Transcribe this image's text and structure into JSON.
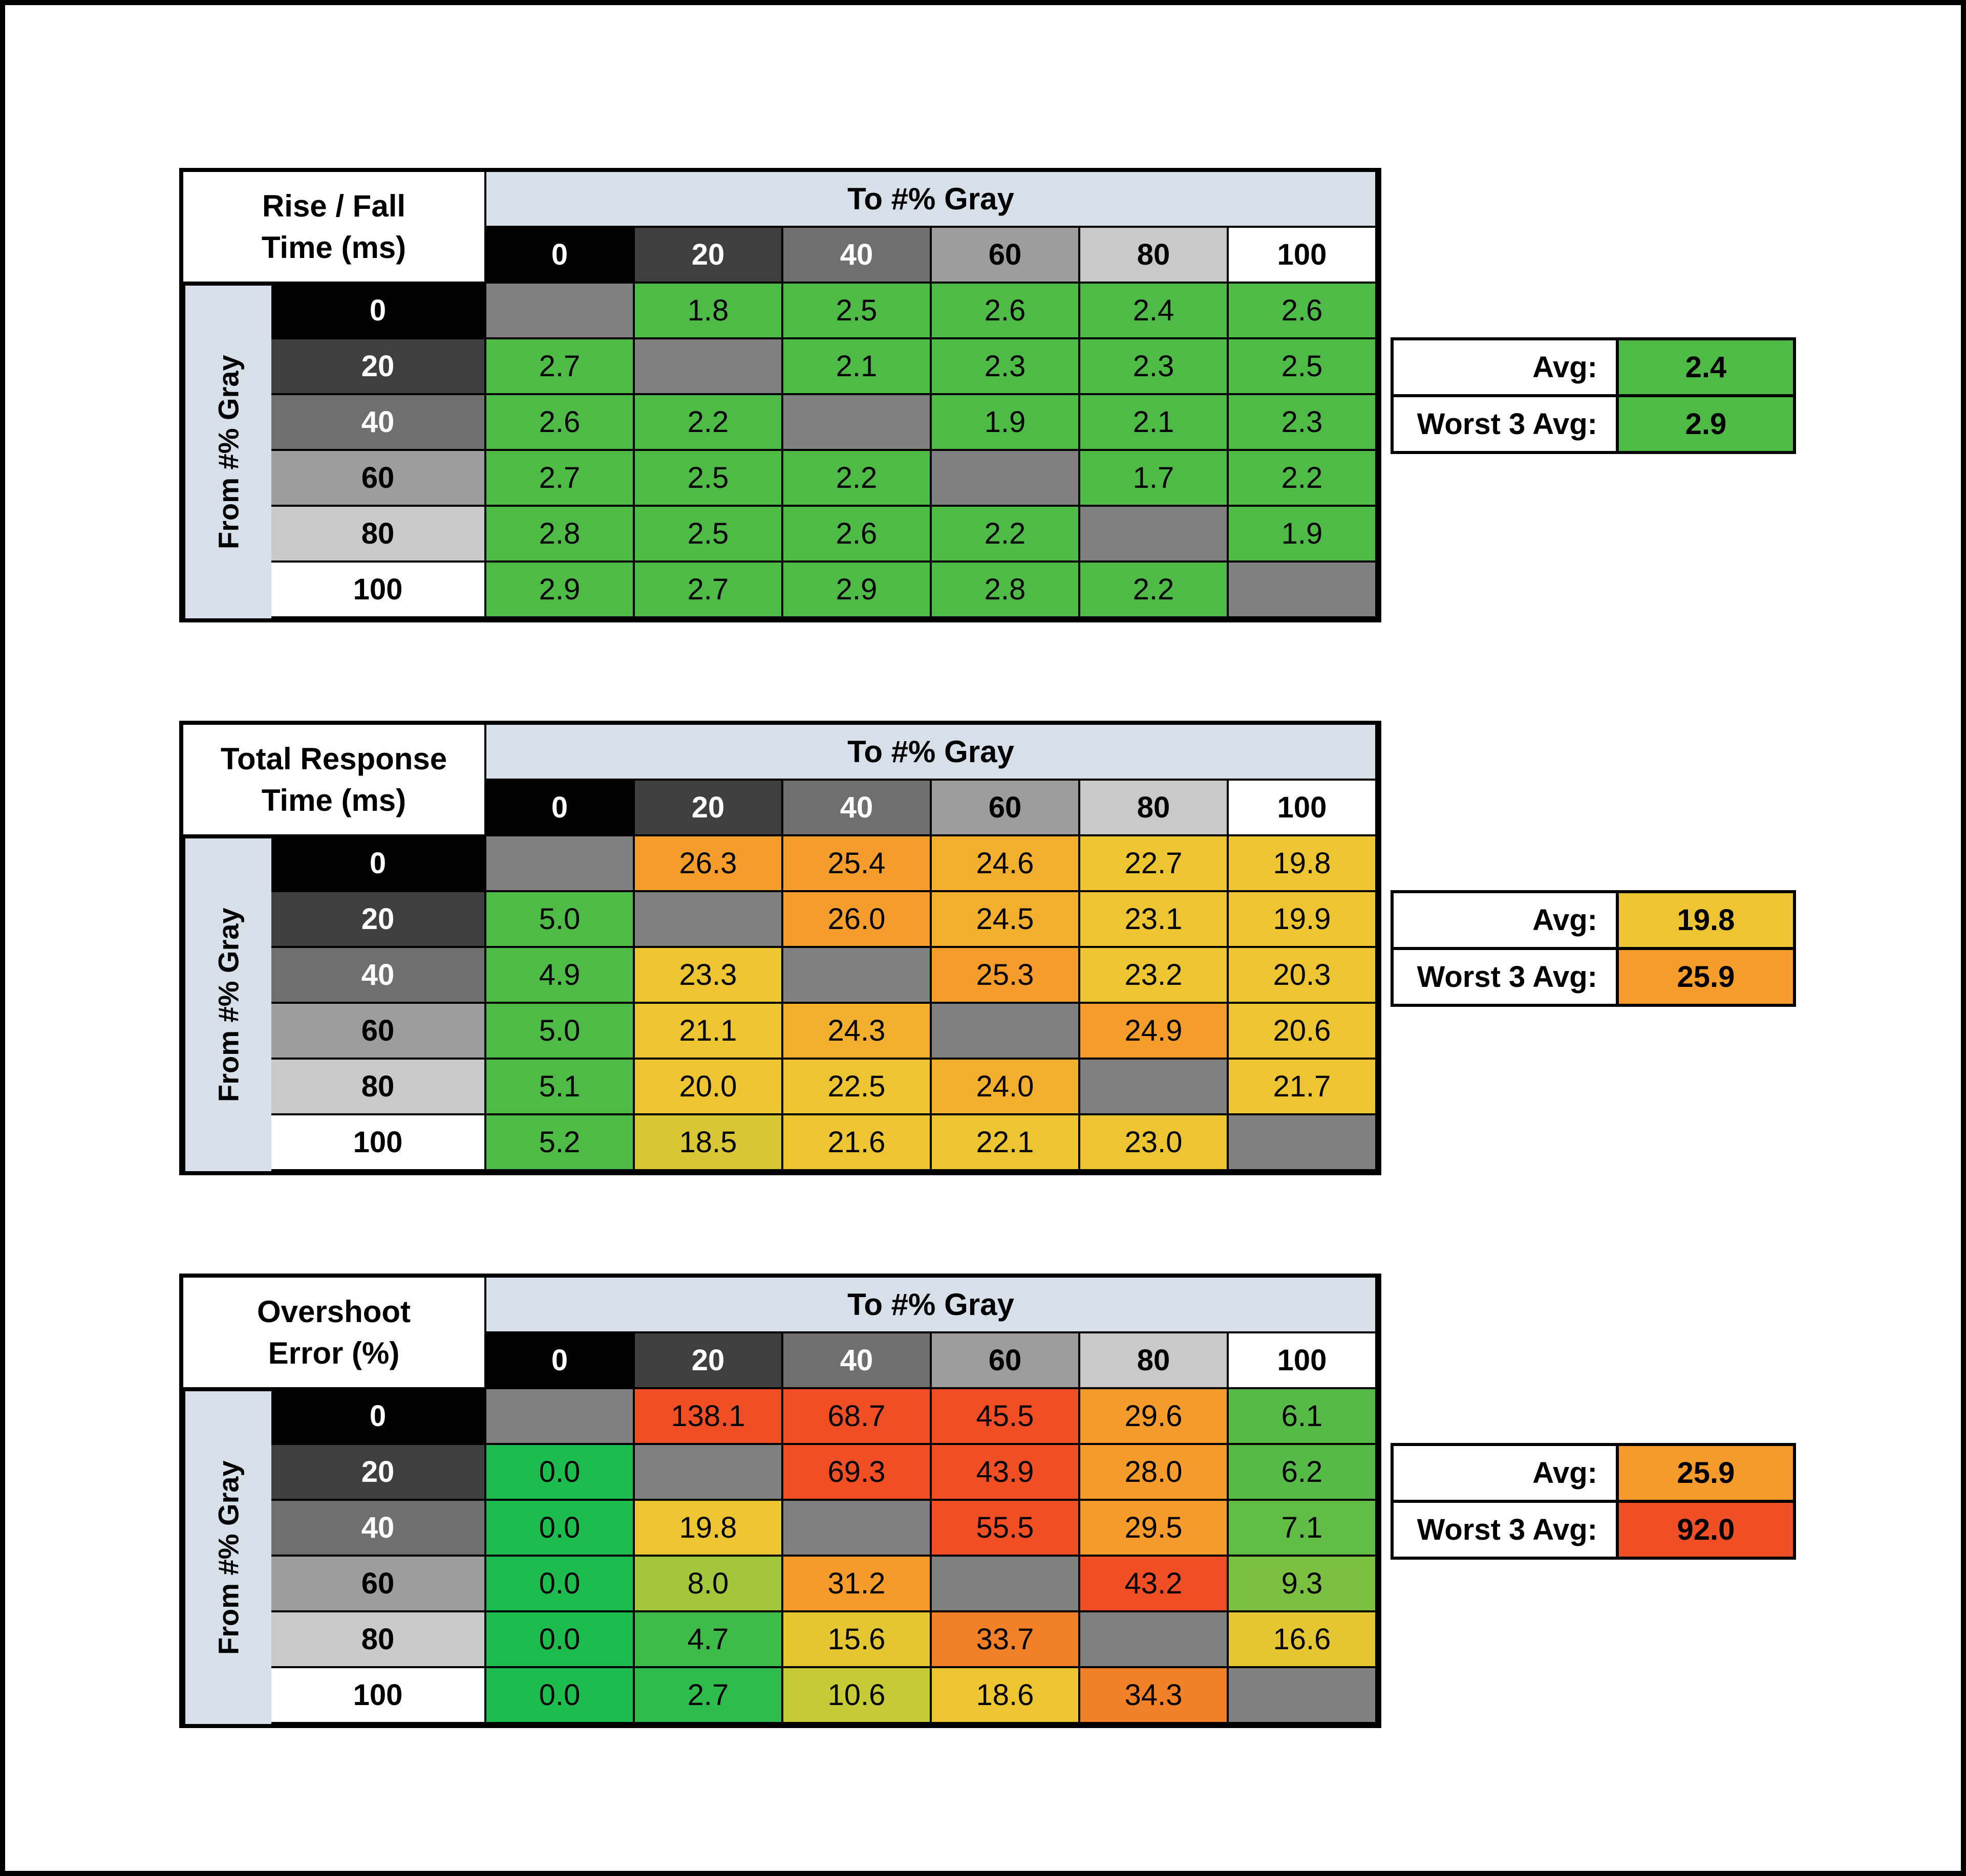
{
  "header_labels": {
    "to": "To #% Gray",
    "from": "From #% Gray",
    "avg": "Avg:",
    "worst": "Worst 3 Avg:"
  },
  "colors": {
    "header_bg": "#D7E0E9",
    "diagonal": "#808080",
    "canvas_bg": "#FFFFFF",
    "border": "#000000"
  },
  "gray_steps": [
    {
      "label": "0",
      "bg": "#000000",
      "fg": "#FFFFFF"
    },
    {
      "label": "20",
      "bg": "#3F3F3F",
      "fg": "#FFFFFF"
    },
    {
      "label": "40",
      "bg": "#6F6F6F",
      "fg": "#FFFFFF"
    },
    {
      "label": "60",
      "bg": "#9D9D9D",
      "fg": "#000000"
    },
    {
      "label": "80",
      "bg": "#C9C9C9",
      "fg": "#000000"
    },
    {
      "label": "100",
      "bg": "#FFFFFF",
      "fg": "#000000"
    }
  ],
  "chart_data": [
    {
      "type": "heatmap",
      "title_lines": [
        "Rise / Fall",
        "Time (ms)"
      ],
      "x_label": "To #% Gray",
      "y_label": "From #% Gray",
      "x_categories": [
        "0",
        "20",
        "40",
        "60",
        "80",
        "100"
      ],
      "y_categories": [
        "0",
        "20",
        "40",
        "60",
        "80",
        "100"
      ],
      "avg": {
        "value": "2.4",
        "bg": "#4FBB47"
      },
      "worst": {
        "value": "2.9",
        "bg": "#4FBB47"
      },
      "rows": [
        {
          "from": "0",
          "cells": [
            null,
            {
              "v": "1.8",
              "bg": "#4FBB47"
            },
            {
              "v": "2.5",
              "bg": "#4FBB47"
            },
            {
              "v": "2.6",
              "bg": "#4FBB47"
            },
            {
              "v": "2.4",
              "bg": "#4FBB47"
            },
            {
              "v": "2.6",
              "bg": "#4FBB47"
            }
          ]
        },
        {
          "from": "20",
          "cells": [
            {
              "v": "2.7",
              "bg": "#4FBB47"
            },
            null,
            {
              "v": "2.1",
              "bg": "#4FBB47"
            },
            {
              "v": "2.3",
              "bg": "#4FBB47"
            },
            {
              "v": "2.3",
              "bg": "#4FBB47"
            },
            {
              "v": "2.5",
              "bg": "#4FBB47"
            }
          ]
        },
        {
          "from": "40",
          "cells": [
            {
              "v": "2.6",
              "bg": "#4FBB47"
            },
            {
              "v": "2.2",
              "bg": "#4FBB47"
            },
            null,
            {
              "v": "1.9",
              "bg": "#4FBB47"
            },
            {
              "v": "2.1",
              "bg": "#4FBB47"
            },
            {
              "v": "2.3",
              "bg": "#4FBB47"
            }
          ]
        },
        {
          "from": "60",
          "cells": [
            {
              "v": "2.7",
              "bg": "#4FBB47"
            },
            {
              "v": "2.5",
              "bg": "#4FBB47"
            },
            {
              "v": "2.2",
              "bg": "#4FBB47"
            },
            null,
            {
              "v": "1.7",
              "bg": "#4FBB47"
            },
            {
              "v": "2.2",
              "bg": "#4FBB47"
            }
          ]
        },
        {
          "from": "80",
          "cells": [
            {
              "v": "2.8",
              "bg": "#4FBB47"
            },
            {
              "v": "2.5",
              "bg": "#4FBB47"
            },
            {
              "v": "2.6",
              "bg": "#4FBB47"
            },
            {
              "v": "2.2",
              "bg": "#4FBB47"
            },
            null,
            {
              "v": "1.9",
              "bg": "#4FBB47"
            }
          ]
        },
        {
          "from": "100",
          "cells": [
            {
              "v": "2.9",
              "bg": "#4FBB47"
            },
            {
              "v": "2.7",
              "bg": "#4FBB47"
            },
            {
              "v": "2.9",
              "bg": "#4FBB47"
            },
            {
              "v": "2.8",
              "bg": "#4FBB47"
            },
            {
              "v": "2.2",
              "bg": "#4FBB47"
            },
            null
          ]
        }
      ]
    },
    {
      "type": "heatmap",
      "title_lines": [
        "Total Response",
        "Time (ms)"
      ],
      "x_label": "To #% Gray",
      "y_label": "From #% Gray",
      "x_categories": [
        "0",
        "20",
        "40",
        "60",
        "80",
        "100"
      ],
      "y_categories": [
        "0",
        "20",
        "40",
        "60",
        "80",
        "100"
      ],
      "avg": {
        "value": "19.8",
        "bg": "#EDC431"
      },
      "worst": {
        "value": "25.9",
        "bg": "#F49D2B"
      },
      "rows": [
        {
          "from": "0",
          "cells": [
            null,
            {
              "v": "26.3",
              "bg": "#F49D2B"
            },
            {
              "v": "25.4",
              "bg": "#F49D2B"
            },
            {
              "v": "24.6",
              "bg": "#F2AF2D"
            },
            {
              "v": "22.7",
              "bg": "#EDC431"
            },
            {
              "v": "19.8",
              "bg": "#EDC431"
            }
          ]
        },
        {
          "from": "20",
          "cells": [
            {
              "v": "5.0",
              "bg": "#4FBB47"
            },
            null,
            {
              "v": "26.0",
              "bg": "#F49D2B"
            },
            {
              "v": "24.5",
              "bg": "#F2AF2D"
            },
            {
              "v": "23.1",
              "bg": "#EDC431"
            },
            {
              "v": "19.9",
              "bg": "#EDC431"
            }
          ]
        },
        {
          "from": "40",
          "cells": [
            {
              "v": "4.9",
              "bg": "#4FBB47"
            },
            {
              "v": "23.3",
              "bg": "#EDC431"
            },
            null,
            {
              "v": "25.3",
              "bg": "#F49D2B"
            },
            {
              "v": "23.2",
              "bg": "#EDC431"
            },
            {
              "v": "20.3",
              "bg": "#EDC431"
            }
          ]
        },
        {
          "from": "60",
          "cells": [
            {
              "v": "5.0",
              "bg": "#4FBB47"
            },
            {
              "v": "21.1",
              "bg": "#EDC431"
            },
            {
              "v": "24.3",
              "bg": "#F2AF2D"
            },
            null,
            {
              "v": "24.9",
              "bg": "#F49D2B"
            },
            {
              "v": "20.6",
              "bg": "#EDC431"
            }
          ]
        },
        {
          "from": "80",
          "cells": [
            {
              "v": "5.1",
              "bg": "#4FBB47"
            },
            {
              "v": "20.0",
              "bg": "#EDC431"
            },
            {
              "v": "22.5",
              "bg": "#EDC431"
            },
            {
              "v": "24.0",
              "bg": "#F2AF2D"
            },
            null,
            {
              "v": "21.7",
              "bg": "#EDC431"
            }
          ]
        },
        {
          "from": "100",
          "cells": [
            {
              "v": "5.2",
              "bg": "#4FBB47"
            },
            {
              "v": "18.5",
              "bg": "#D9C634"
            },
            {
              "v": "21.6",
              "bg": "#EDC431"
            },
            {
              "v": "22.1",
              "bg": "#EDC431"
            },
            {
              "v": "23.0",
              "bg": "#EDC431"
            },
            null
          ]
        }
      ]
    },
    {
      "type": "heatmap",
      "title_lines": [
        "Overshoot",
        "Error (%)"
      ],
      "x_label": "To #% Gray",
      "y_label": "From #% Gray",
      "x_categories": [
        "0",
        "20",
        "40",
        "60",
        "80",
        "100"
      ],
      "y_categories": [
        "0",
        "20",
        "40",
        "60",
        "80",
        "100"
      ],
      "avg": {
        "value": "25.9",
        "bg": "#F59B2B"
      },
      "worst": {
        "value": "92.0",
        "bg": "#F04E25"
      },
      "rows": [
        {
          "from": "0",
          "cells": [
            null,
            {
              "v": "138.1",
              "bg": "#F04E25"
            },
            {
              "v": "68.7",
              "bg": "#F04E25"
            },
            {
              "v": "45.5",
              "bg": "#F04E25"
            },
            {
              "v": "29.6",
              "bg": "#F59B2B"
            },
            {
              "v": "6.1",
              "bg": "#55BB46"
            }
          ]
        },
        {
          "from": "20",
          "cells": [
            {
              "v": "0.0",
              "bg": "#1CBD4E"
            },
            null,
            {
              "v": "69.3",
              "bg": "#F04E25"
            },
            {
              "v": "43.9",
              "bg": "#F04E25"
            },
            {
              "v": "28.0",
              "bg": "#F59B2B"
            },
            {
              "v": "6.2",
              "bg": "#55BB46"
            }
          ]
        },
        {
          "from": "40",
          "cells": [
            {
              "v": "0.0",
              "bg": "#1CBD4E"
            },
            {
              "v": "19.8",
              "bg": "#EDC431"
            },
            null,
            {
              "v": "55.5",
              "bg": "#F04E25"
            },
            {
              "v": "29.5",
              "bg": "#F59B2B"
            },
            {
              "v": "7.1",
              "bg": "#5FBC45"
            }
          ]
        },
        {
          "from": "60",
          "cells": [
            {
              "v": "0.0",
              "bg": "#1CBD4E"
            },
            {
              "v": "8.0",
              "bg": "#A3C73B"
            },
            {
              "v": "31.2",
              "bg": "#F59B2B"
            },
            null,
            {
              "v": "43.2",
              "bg": "#F04E25"
            },
            {
              "v": "9.3",
              "bg": "#7CC041"
            }
          ]
        },
        {
          "from": "80",
          "cells": [
            {
              "v": "0.0",
              "bg": "#1CBD4E"
            },
            {
              "v": "4.7",
              "bg": "#3FBB4A"
            },
            {
              "v": "15.6",
              "bg": "#E3C631"
            },
            {
              "v": "33.7",
              "bg": "#F28027"
            },
            null,
            {
              "v": "16.6",
              "bg": "#E3C631"
            }
          ]
        },
        {
          "from": "100",
          "cells": [
            {
              "v": "0.0",
              "bg": "#1CBD4E"
            },
            {
              "v": "2.7",
              "bg": "#2FBC4C"
            },
            {
              "v": "10.6",
              "bg": "#C6CA36"
            },
            {
              "v": "18.6",
              "bg": "#EDC431"
            },
            {
              "v": "34.3",
              "bg": "#F28027"
            },
            null
          ]
        }
      ]
    }
  ]
}
